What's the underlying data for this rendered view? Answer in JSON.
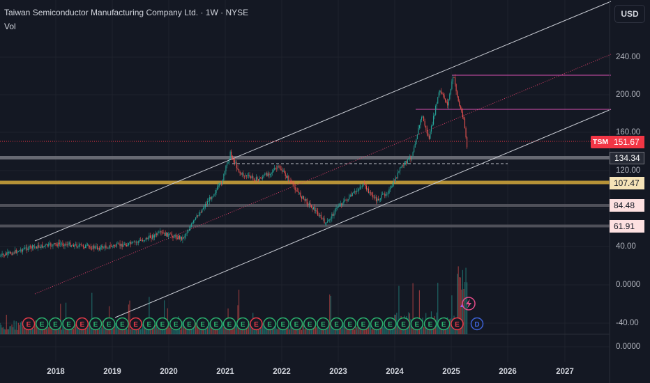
{
  "header": {
    "title": "Taiwan Semiconductor Manufacturing Company Ltd. · 1W · NYSE",
    "volume_label": "Vol"
  },
  "currency_button": "USD",
  "price_axis_labels": [
    "240.00",
    "200.00",
    "160.00",
    "120.00",
    "40.00",
    "0.0000",
    "-40.00",
    "0.0000"
  ],
  "ticker_badge": "TSM",
  "last_price": "151.67",
  "level_tags": [
    "134.34",
    "107.47",
    "84.48",
    "61.91"
  ],
  "x_axis_labels": [
    "2018",
    "2019",
    "2020",
    "2021",
    "2022",
    "2023",
    "2024",
    "2025",
    "2026",
    "2027"
  ],
  "event_markers": {
    "earnings_letter": "E",
    "dividend_letter": "D",
    "count": 33
  },
  "colors": {
    "background": "#141823",
    "up_candle": "#26a69a",
    "down_candle": "#ef5350",
    "last_price": "#f23645",
    "channel": "#c9ccd4",
    "midline": "#e0406a",
    "resistance": "#d94fb0",
    "level_107": "#c8a03a",
    "level_grey": "#6d6f78"
  }
}
